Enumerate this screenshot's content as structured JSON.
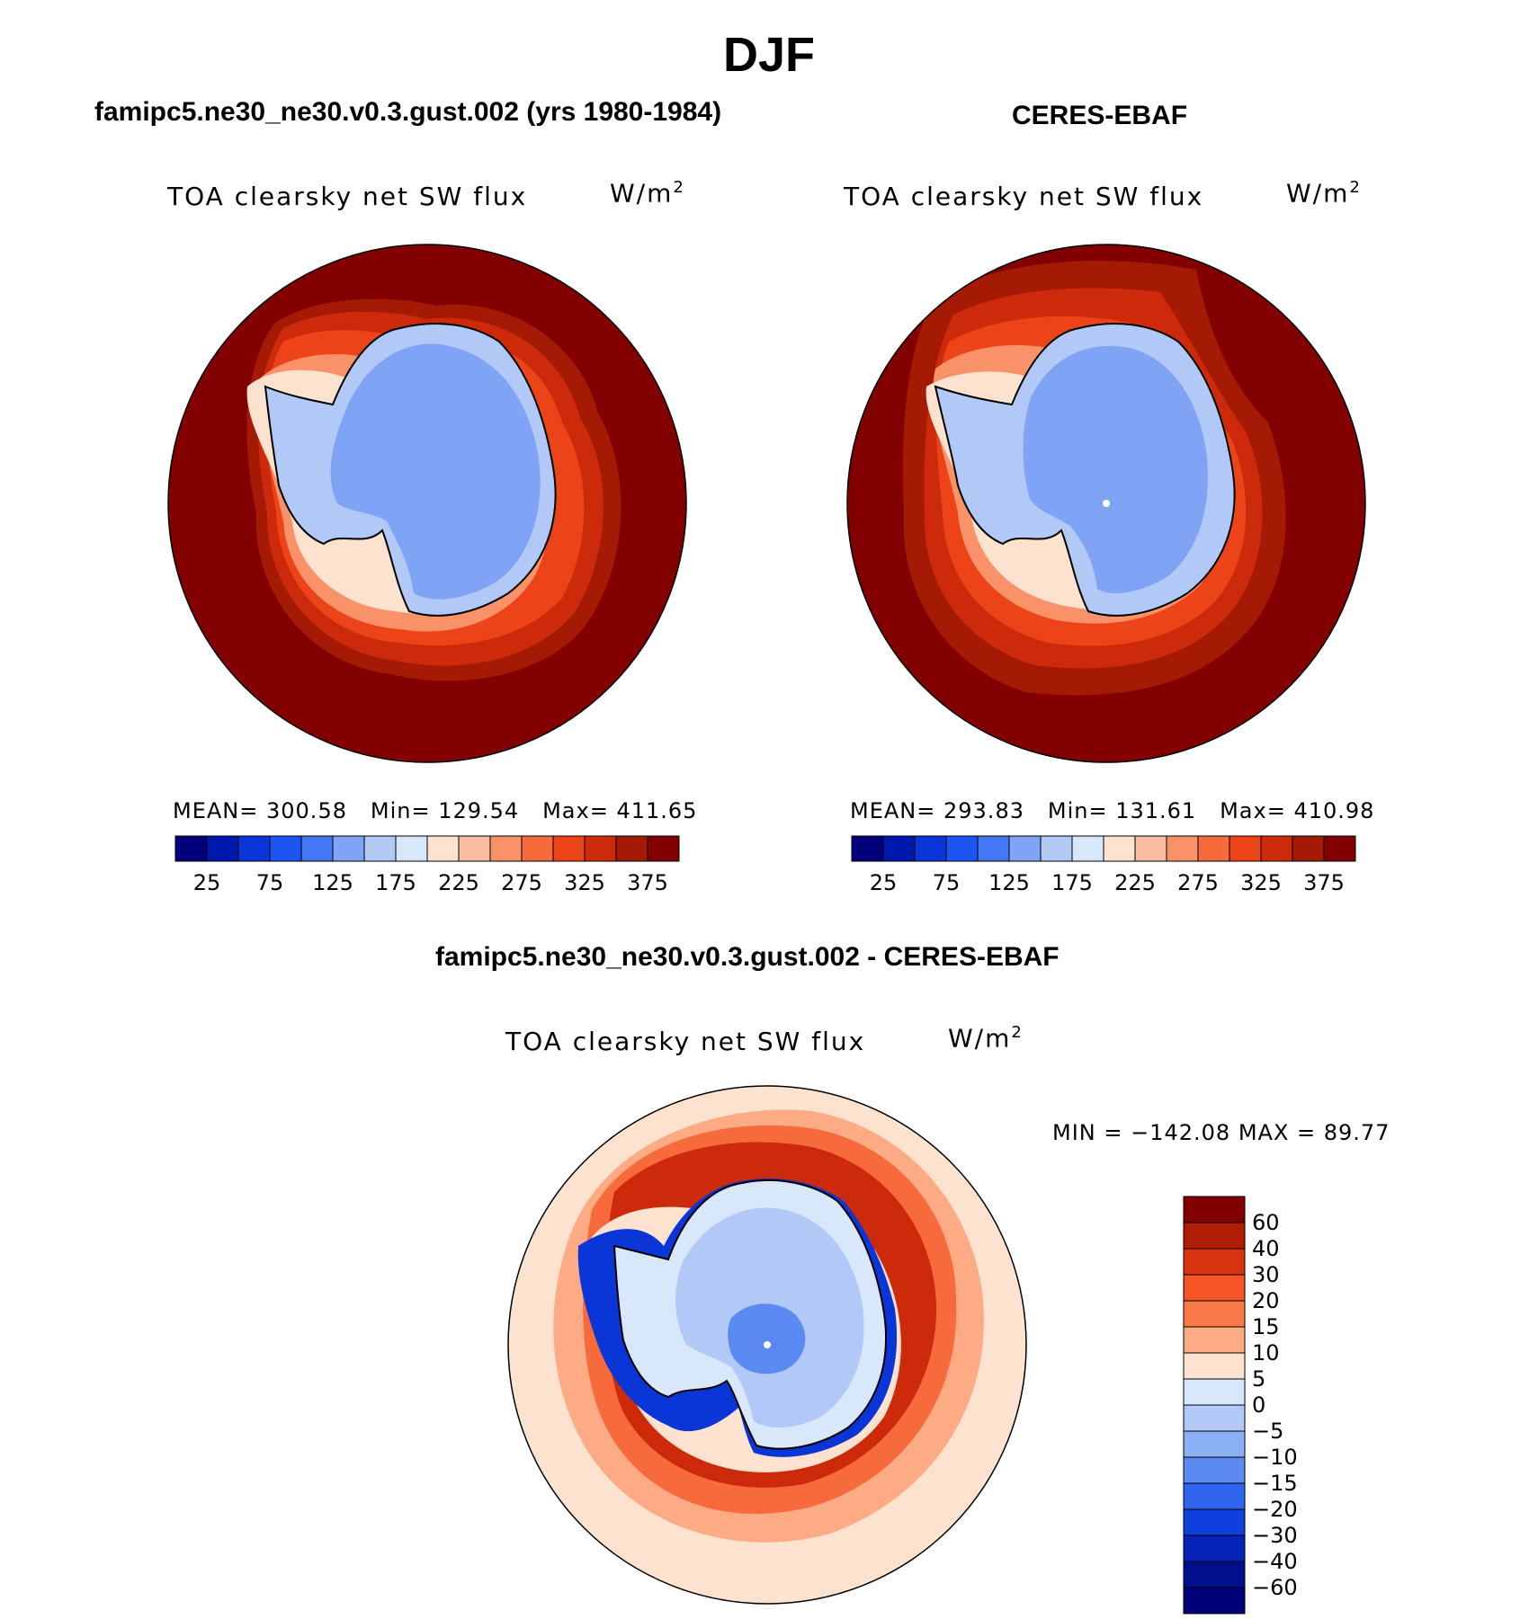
{
  "main_title": "DJF",
  "panels": [
    {
      "subtitle": "famipc5.ne30_ne30.v0.3.gust.002 (yrs 1980-1984)",
      "variable": "TOA clearsky net SW flux",
      "unit_base": "W/m",
      "unit_exp": "2",
      "stats": {
        "mean_label": "MEAN=",
        "mean": "300.58",
        "min_label": "Min=",
        "min": "129.54",
        "max_label": "Max=",
        "max": "411.65"
      }
    },
    {
      "subtitle": "CERES-EBAF",
      "variable": "TOA clearsky net SW flux",
      "unit_base": "W/m",
      "unit_exp": "2",
      "stats": {
        "mean_label": "MEAN=",
        "mean": "293.83",
        "min_label": "Min=",
        "min": "131.61",
        "max_label": "Max=",
        "max": "410.98"
      }
    }
  ],
  "diff_panel": {
    "subtitle": "famipc5.ne30_ne30.v0.3.gust.002 - CERES-EBAF",
    "variable": "TOA clearsky net SW flux",
    "unit_base": "W/m",
    "unit_exp": "2",
    "minmax": "MIN = −142.08 MAX =   89.77"
  },
  "colorbar_abs": {
    "tick_labels": [
      "25",
      "75",
      "125",
      "175",
      "225",
      "275",
      "325",
      "375"
    ],
    "colors": [
      "#00007a",
      "#0018b0",
      "#0a36d8",
      "#1e55f0",
      "#4477f4",
      "#7fa3f5",
      "#b2c9f7",
      "#d9e7fb",
      "#fde2cf",
      "#fcbca0",
      "#fa9269",
      "#f76a3c",
      "#ec4418",
      "#cc2a0a",
      "#a51a04",
      "#830000"
    ]
  },
  "colorbar_diff": {
    "tick_labels": [
      "60",
      "40",
      "30",
      "20",
      "15",
      "10",
      "5",
      "0",
      "−5",
      "−10",
      "−15",
      "−20",
      "−30",
      "−40",
      "−60"
    ],
    "colors": [
      "#830000",
      "#b01d04",
      "#d9340f",
      "#f75526",
      "#fa7a4a",
      "#fcab85",
      "#fde2cf",
      "#d9e7fb",
      "#b2c9f7",
      "#8bb0f6",
      "#5b8af3",
      "#2e64ee",
      "#0f3fdc",
      "#0623b8",
      "#00108c",
      "#00007a"
    ]
  },
  "map_colors": {
    "ocean_high": "#830000",
    "ring1": "#a51a04",
    "ring2": "#cc2a0a",
    "ring3": "#ec4418",
    "ring4": "#fa9269",
    "ring5": "#fde2cf",
    "ice_light": "#b2c9f7",
    "ice_main": "#7fa3f5",
    "diff_bg": "#fde2cf",
    "diff_ring": "#f76a3c",
    "diff_ring_dark": "#cc2a0a",
    "diff_blue": "#0a36d8",
    "diff_lightblue": "#d9e7fb"
  }
}
